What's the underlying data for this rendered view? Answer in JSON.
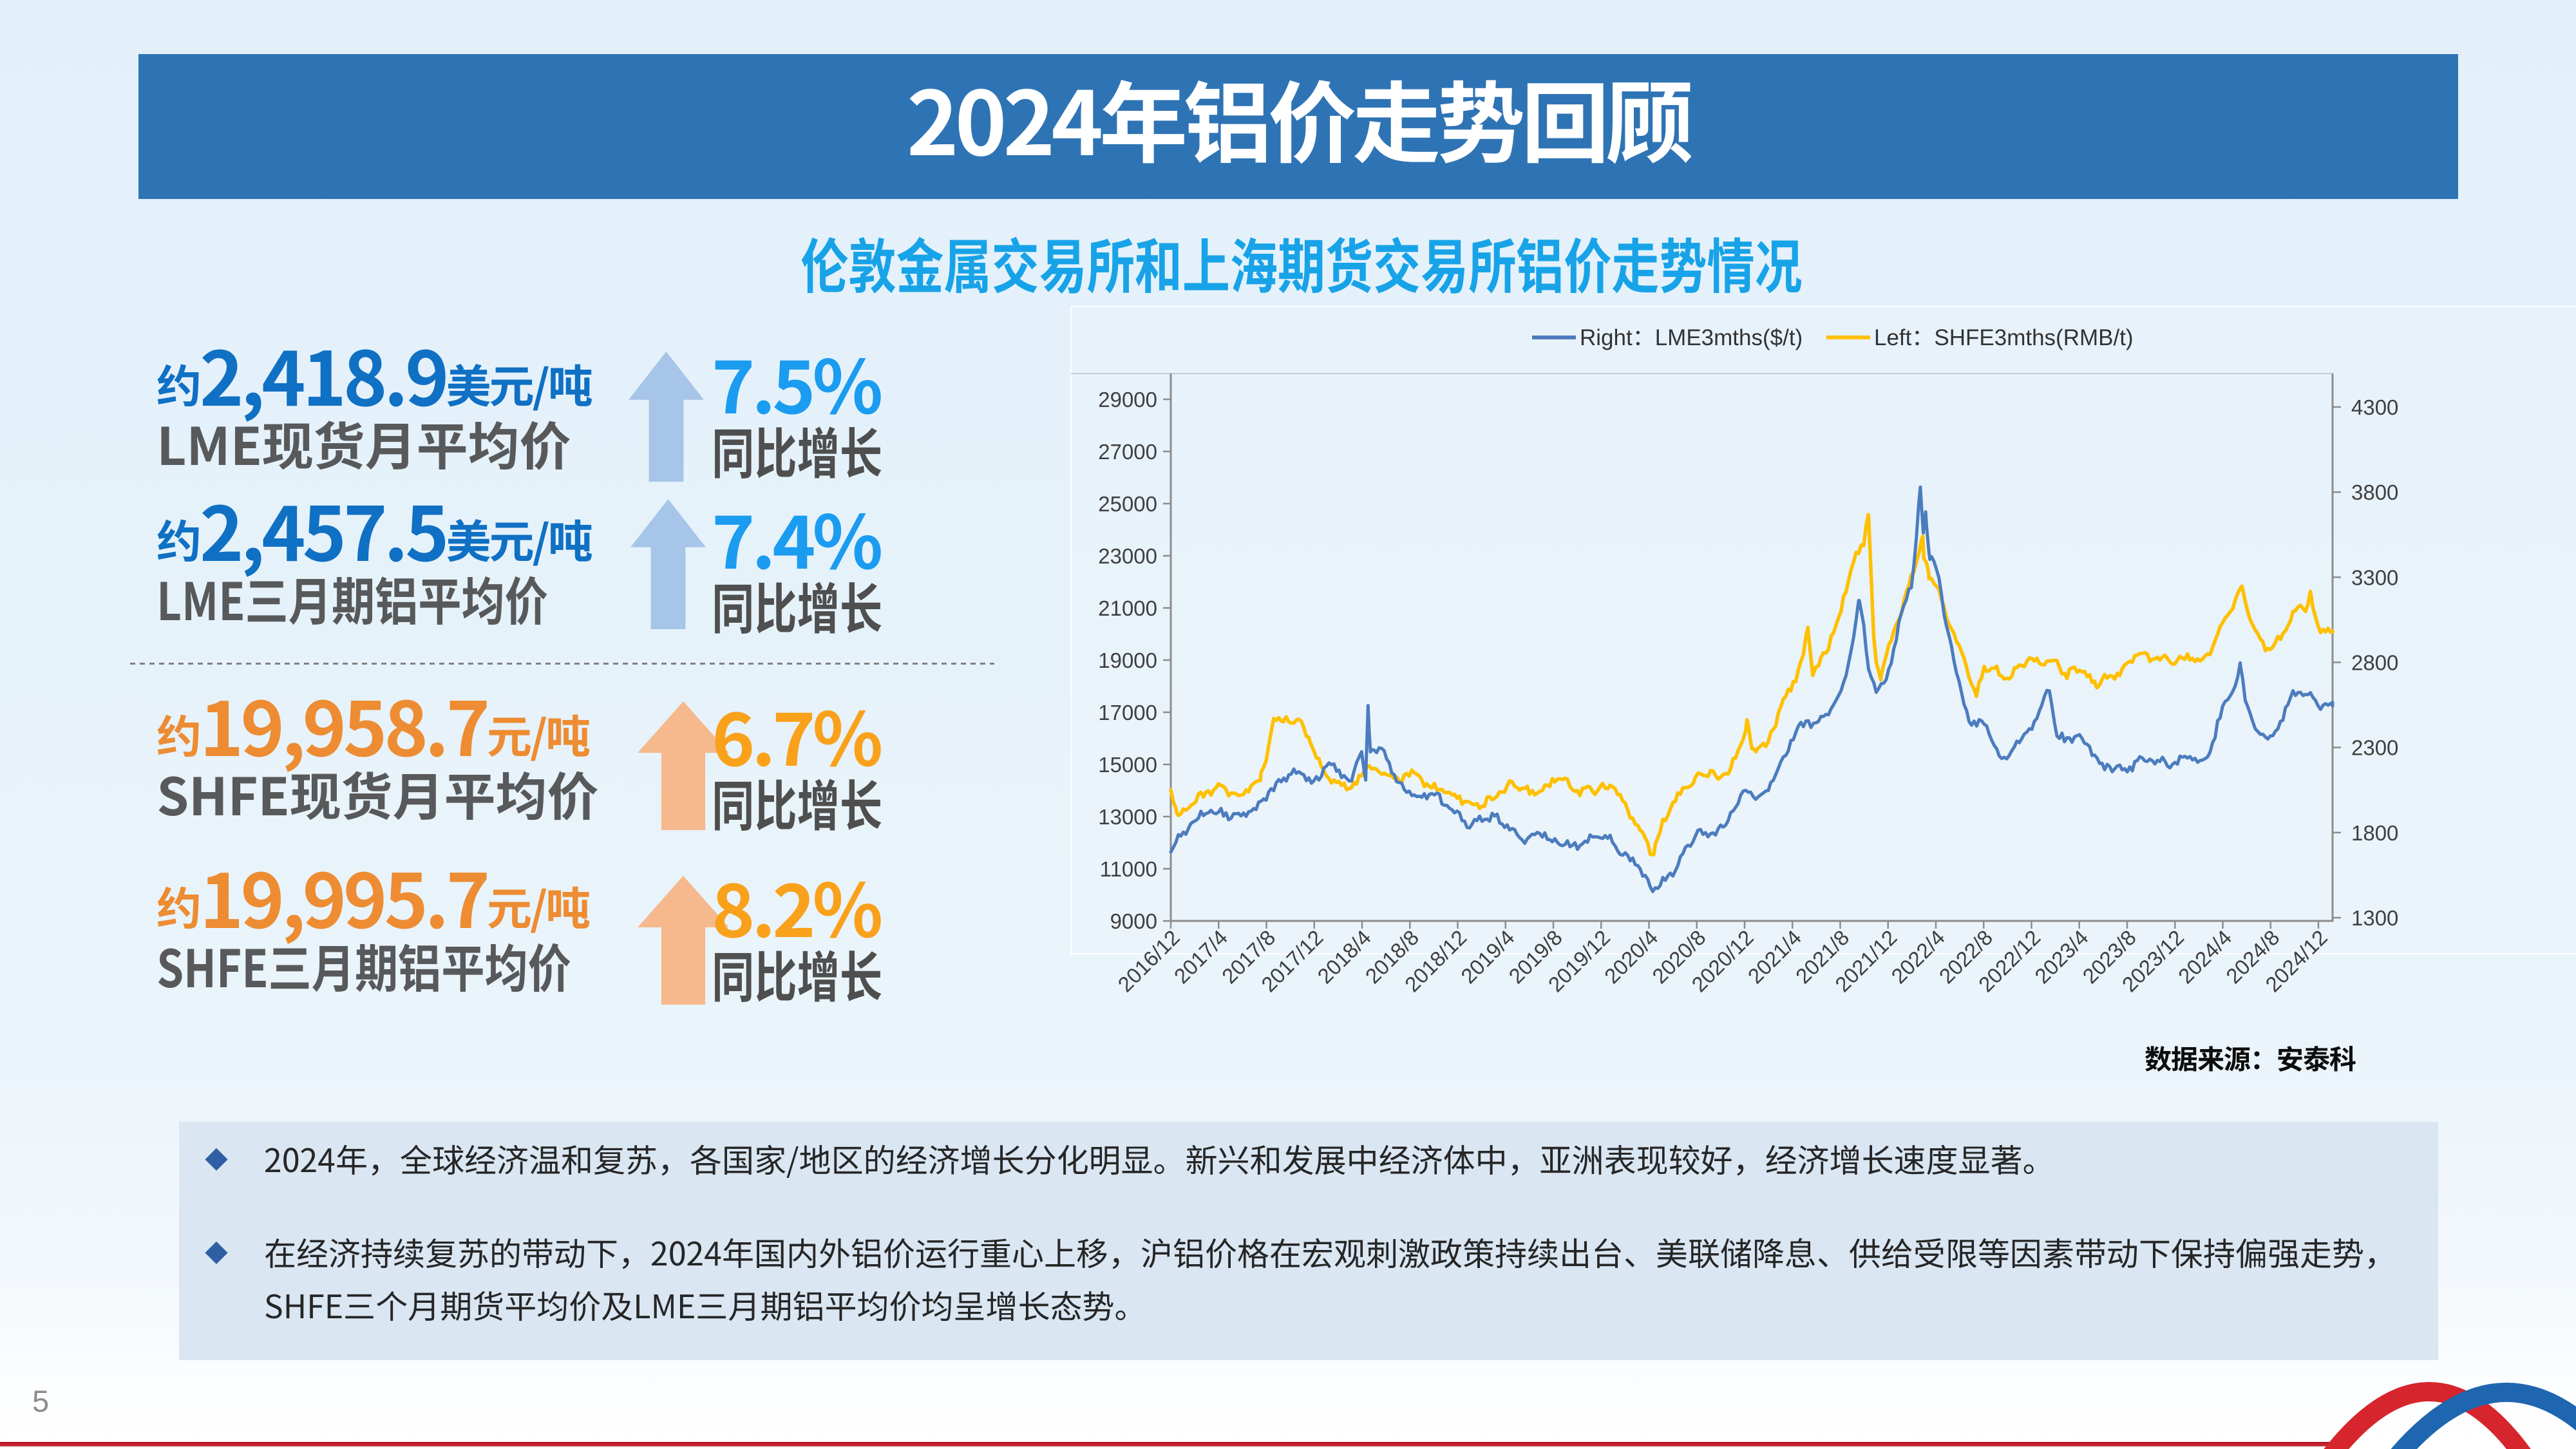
{
  "slide": {
    "page_number": "5",
    "header": {
      "title": "2024年铝价走势回顾",
      "bar_color": "#2E74B5",
      "title_color": "#FFFFFF"
    },
    "subtitle": {
      "text": "伦敦金属交易所和上海期货交易所铝价走势情况",
      "color": "#18A3E8"
    },
    "footer": {
      "red_line_color": "#BE1E2C",
      "logo": "red-blue-crossing-ribbons"
    }
  },
  "stats": [
    {
      "prefix": "约",
      "value": "2,418.9",
      "unit": "美元/吨",
      "label": "LME现货月平均价",
      "pct": "7.5%",
      "pct_label": "同比增长",
      "theme": "blue"
    },
    {
      "prefix": "约",
      "value": "2,457.5",
      "unit": "美元/吨",
      "label": "LME三月期铝平均价",
      "pct": "7.4%",
      "pct_label": "同比增长",
      "theme": "blue"
    },
    {
      "prefix": "约",
      "value": "19,958.7",
      "unit": "元/吨",
      "label": "SHFE现货月平均价",
      "pct": "6.7%",
      "pct_label": "同比增长",
      "theme": "orange"
    },
    {
      "prefix": "约",
      "value": "19,995.7",
      "unit": "元/吨",
      "label": "SHFE三月期铝平均价",
      "pct": "8.2%",
      "pct_label": "同比增长",
      "theme": "orange"
    }
  ],
  "stat_colors": {
    "blue_value": "#0F70C4",
    "blue_pct": "#1B9CF0",
    "orange_value": "#ED8C32",
    "orange_pct": "#F9A11B",
    "label": "#595959",
    "arrow_blue": "#A6C5E8",
    "arrow_orange": "#F5B98D"
  },
  "chart_data": {
    "type": "line",
    "title": "",
    "x_tick_labels": [
      "2016/12",
      "2017/4",
      "2017/8",
      "2017/12",
      "2018/4",
      "2018/8",
      "2018/12",
      "2019/4",
      "2019/8",
      "2019/12",
      "2020/4",
      "2020/8",
      "2020/12",
      "2021/4",
      "2021/8",
      "2021/12",
      "2022/4",
      "2022/8",
      "2022/12",
      "2023/4",
      "2023/8",
      "2023/12",
      "2024/4",
      "2024/8",
      "2024/12"
    ],
    "x_start_month": "2016/12",
    "x_months_total": 97,
    "left_axis": {
      "unit": "RMB/t",
      "min": 9000,
      "max": 29000,
      "step": 2000,
      "ticks": [
        9000,
        11000,
        13000,
        15000,
        17000,
        19000,
        21000,
        23000,
        25000,
        27000,
        29000
      ]
    },
    "right_axis": {
      "unit": "$/t",
      "min": 1300,
      "max": 4300,
      "step": 500,
      "ticks": [
        1300,
        1800,
        2300,
        2800,
        3300,
        3800,
        4300
      ]
    },
    "legend": [
      {
        "label": "Right：LME3mths($/t)",
        "color": "#4C7CBE"
      },
      {
        "label": "Left：SHFE3mths(RMB/t)",
        "color": "#FFC000"
      }
    ],
    "series": [
      {
        "name": "SHFE3mths(RMB/t)",
        "axis": "left",
        "color": "#FFC000",
        "width": 5.5,
        "noise": 300,
        "seed": 3,
        "monthly": [
          13900,
          13200,
          13700,
          13900,
          14000,
          13850,
          13900,
          14300,
          15200,
          16700,
          16500,
          16400,
          15400,
          14700,
          14400,
          13950,
          14500,
          14850,
          14700,
          14250,
          14600,
          14450,
          14200,
          13900,
          13650,
          13450,
          13600,
          13750,
          14000,
          14250,
          14000,
          13950,
          14300,
          14350,
          14000,
          14050,
          14100,
          14050,
          13400,
          12900,
          11750,
          12500,
          13600,
          14250,
          14500,
          14600,
          14450,
          15100,
          16100,
          15500,
          15850,
          17300,
          17950,
          19300,
          18750,
          19650,
          20800,
          22600,
          23500,
          18900,
          19350,
          20600,
          22300,
          23000,
          21900,
          20350,
          19650,
          18200,
          18650,
          18550,
          18350,
          18950,
          18900,
          18850,
          18950,
          18500,
          18750,
          18200,
          18450,
          18450,
          18800,
          19250,
          19050,
          19150,
          19000,
          19050,
          18950,
          19400,
          20500,
          21200,
          20900,
          19900,
          19400,
          19950,
          20850,
          21100,
          20300
        ],
        "extra_points": [
          [
            0.5,
            13150
          ],
          [
            7.5,
            14400
          ],
          [
            8.5,
            16500
          ],
          [
            9.5,
            16900
          ],
          [
            10.6,
            16800
          ],
          [
            11.6,
            15800
          ],
          [
            16.5,
            15050
          ],
          [
            40.4,
            11500
          ],
          [
            48.2,
            16700
          ],
          [
            48.6,
            15600
          ],
          [
            53.3,
            20200
          ],
          [
            53.7,
            18400
          ],
          [
            58.35,
            24820
          ],
          [
            58.8,
            19800
          ],
          [
            59.4,
            18300
          ],
          [
            62.9,
            23750
          ],
          [
            63.4,
            22300
          ],
          [
            67.4,
            17650
          ],
          [
            77.4,
            17900
          ],
          [
            89.6,
            21700
          ],
          [
            95.3,
            21600
          ],
          [
            97.3,
            19900
          ]
        ]
      },
      {
        "name": "LME3mths($/t)",
        "axis": "right",
        "color": "#4C7CBE",
        "width": 5,
        "noise": 48,
        "seed": 11,
        "monthly": [
          1725,
          1795,
          1860,
          1915,
          1935,
          1915,
          1885,
          1905,
          2030,
          2095,
          2150,
          2120,
          2090,
          2210,
          2175,
          2070,
          2280,
          2300,
          2245,
          2085,
          2050,
          2025,
          2025,
          1945,
          1920,
          1855,
          1880,
          1875,
          1845,
          1790,
          1765,
          1795,
          1740,
          1755,
          1725,
          1760,
          1770,
          1750,
          1685,
          1605,
          1470,
          1505,
          1590,
          1675,
          1775,
          1790,
          1835,
          1935,
          2030,
          2000,
          2085,
          2200,
          2345,
          2435,
          2450,
          2515,
          2610,
          2870,
          3000,
          2640,
          2700,
          3060,
          3270,
          3620,
          3360,
          2990,
          2670,
          2420,
          2450,
          2290,
          2255,
          2370,
          2400,
          2555,
          2415,
          2335,
          2360,
          2270,
          2185,
          2205,
          2160,
          2205,
          2225,
          2235,
          2200,
          2245,
          2215,
          2290,
          2550,
          2640,
          2540,
          2395,
          2355,
          2460,
          2620,
          2630,
          2560
        ],
        "extra_points": [
          [
            16.3,
            2120
          ],
          [
            16.5,
            2545
          ],
          [
            16.7,
            2290
          ],
          [
            40.4,
            1455
          ],
          [
            57.6,
            3170
          ],
          [
            58.4,
            2760
          ],
          [
            62.7,
            3840
          ],
          [
            62.95,
            3560
          ],
          [
            63.15,
            3680
          ],
          [
            63.5,
            3390
          ],
          [
            73.5,
            2630
          ],
          [
            89.5,
            2775
          ],
          [
            97.3,
            2530
          ]
        ]
      }
    ],
    "source_note": "数据来源：安泰科"
  },
  "bullets": {
    "box_color": "#DAE6F2",
    "marker": "◆",
    "marker_color": "#2E5FA3",
    "items": [
      "2024年，全球经济温和复苏，各国家/地区的经济增长分化明显。新兴和发展中经济体中，亚洲表现较好，经济增长速度显著。",
      "在经济持续复苏的带动下，2024年国内外铝价运行重心上移，沪铝价格在宏观刺激政策持续出台、美联储降息、供给受限等因素带动下保持偏强走势，SHFE三个月期货平均价及LME三月期铝平均价均呈增长态势。"
    ]
  }
}
